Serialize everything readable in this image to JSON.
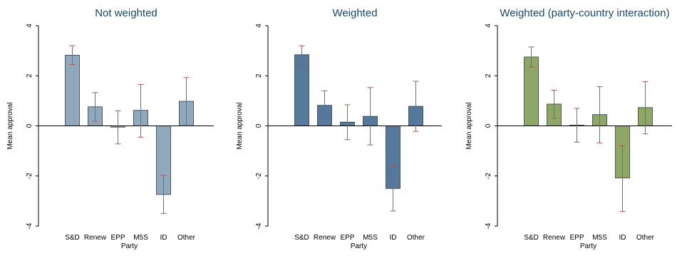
{
  "chart_data": [
    {
      "type": "bar",
      "title": "Not weighted",
      "xlabel": "Party",
      "ylabel": "Mean approval",
      "ylim": [
        -4,
        4
      ],
      "yticks": [
        4,
        2,
        0,
        -2,
        -4
      ],
      "ytick_labels": [
        "4",
        "2",
        "0",
        "-2",
        "-4"
      ],
      "categories": [
        "S&D",
        "Renew",
        "EPP",
        "M5S",
        "ID",
        "Other"
      ],
      "values": [
        2.82,
        0.76,
        -0.05,
        0.62,
        -2.74,
        0.98
      ],
      "ci_low": [
        2.45,
        0.18,
        -0.72,
        -0.45,
        -3.5,
        0.02
      ],
      "ci_high": [
        3.2,
        1.33,
        0.6,
        1.65,
        -1.98,
        1.93
      ],
      "bar_color": "#90a8bc",
      "error_color": "#b85450",
      "grid": false
    },
    {
      "type": "bar",
      "title": "Weighted",
      "xlabel": "Party",
      "ylabel": "Mean approval",
      "ylim": [
        -4,
        4
      ],
      "yticks": [
        4,
        2,
        0,
        -2,
        -4
      ],
      "ytick_labels": [
        "4",
        "2",
        "0",
        "-2",
        "-4"
      ],
      "categories": [
        "S&D",
        "Renew",
        "EPP",
        "M5S",
        "ID",
        "Other"
      ],
      "values": [
        2.84,
        0.82,
        0.15,
        0.38,
        -2.5,
        0.78
      ],
      "ci_low": [
        2.48,
        0.26,
        -0.55,
        -0.76,
        -3.4,
        -0.22
      ],
      "ci_high": [
        3.2,
        1.4,
        0.84,
        1.53,
        -1.6,
        1.78
      ],
      "bar_color": "#56789a",
      "error_color": "#b85450",
      "grid": false
    },
    {
      "type": "bar",
      "title": "Weighted (party-country interaction)",
      "xlabel": "Party",
      "ylabel": "Mean approval",
      "ylim": [
        -4,
        4
      ],
      "yticks": [
        4,
        2,
        0,
        -2,
        -4
      ],
      "ytick_labels": [
        "4",
        "2",
        "0",
        "-2",
        "-4"
      ],
      "categories": [
        "S&D",
        "Renew",
        "EPP",
        "M5S",
        "ID",
        "Other"
      ],
      "values": [
        2.75,
        0.87,
        0.03,
        0.45,
        -2.08,
        0.73
      ],
      "ci_low": [
        2.35,
        0.3,
        -0.65,
        -0.68,
        -3.42,
        -0.32
      ],
      "ci_high": [
        3.15,
        1.42,
        0.7,
        1.57,
        -0.8,
        1.77
      ],
      "bar_color": "#8ea668",
      "error_color": "#b85450",
      "grid": false
    }
  ]
}
